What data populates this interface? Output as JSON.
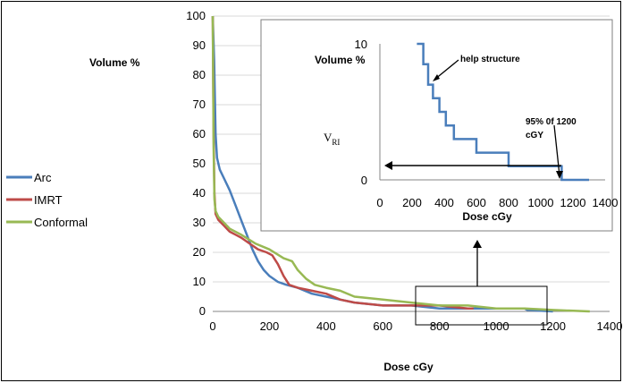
{
  "chart_data": [
    {
      "type": "line",
      "name": "main",
      "xlabel": "Dose cGy",
      "ylabel": "Volume %",
      "xlim": [
        0,
        1400
      ],
      "ylim": [
        0,
        100
      ],
      "xticks": [
        "0",
        "200",
        "400",
        "600",
        "800",
        "1000",
        "1200",
        "1400"
      ],
      "yticks": [
        "0",
        "10",
        "20",
        "30",
        "40",
        "50",
        "60",
        "70",
        "80",
        "90",
        "100"
      ],
      "legend_position": "left",
      "series": [
        {
          "name": "Arc",
          "color": "#4a7ebb",
          "points": [
            [
              0,
              100
            ],
            [
              5,
              85
            ],
            [
              10,
              60
            ],
            [
              15,
              52
            ],
            [
              25,
              48
            ],
            [
              40,
              45
            ],
            [
              60,
              41
            ],
            [
              80,
              36
            ],
            [
              100,
              31
            ],
            [
              120,
              26
            ],
            [
              140,
              21
            ],
            [
              160,
              17
            ],
            [
              180,
              14
            ],
            [
              200,
              12
            ],
            [
              230,
              10
            ],
            [
              260,
              9
            ],
            [
              300,
              8
            ],
            [
              350,
              6
            ],
            [
              400,
              5
            ],
            [
              450,
              4
            ],
            [
              500,
              3
            ],
            [
              600,
              2
            ],
            [
              700,
              2
            ],
            [
              800,
              1
            ],
            [
              1100,
              1
            ],
            [
              1110,
              0.5
            ],
            [
              1200,
              0
            ]
          ]
        },
        {
          "name": "IMRT",
          "color": "#be4b48",
          "points": [
            [
              0,
              100
            ],
            [
              3,
              60
            ],
            [
              6,
              40
            ],
            [
              10,
              33
            ],
            [
              20,
              31
            ],
            [
              40,
              29
            ],
            [
              60,
              27
            ],
            [
              80,
              26
            ],
            [
              100,
              25
            ],
            [
              130,
              23
            ],
            [
              160,
              21
            ],
            [
              190,
              20
            ],
            [
              210,
              19
            ],
            [
              230,
              16
            ],
            [
              250,
              12
            ],
            [
              270,
              9
            ],
            [
              300,
              8
            ],
            [
              350,
              7
            ],
            [
              400,
              6
            ],
            [
              450,
              4
            ],
            [
              500,
              3
            ],
            [
              600,
              2
            ],
            [
              700,
              2
            ],
            [
              800,
              2
            ],
            [
              900,
              1
            ],
            [
              920,
              1
            ]
          ]
        },
        {
          "name": "Conformal",
          "color": "#98b954",
          "points": [
            [
              0,
              100
            ],
            [
              3,
              55
            ],
            [
              6,
              38
            ],
            [
              10,
              34
            ],
            [
              20,
              32
            ],
            [
              40,
              30
            ],
            [
              60,
              28
            ],
            [
              100,
              26
            ],
            [
              150,
              23
            ],
            [
              200,
              21
            ],
            [
              250,
              18
            ],
            [
              280,
              17
            ],
            [
              300,
              14
            ],
            [
              330,
              11
            ],
            [
              360,
              9
            ],
            [
              400,
              8
            ],
            [
              450,
              7
            ],
            [
              500,
              5
            ],
            [
              600,
              4
            ],
            [
              700,
              3
            ],
            [
              800,
              2
            ],
            [
              900,
              2
            ],
            [
              1000,
              1
            ],
            [
              1100,
              1
            ],
            [
              1200,
              0.5
            ],
            [
              1330,
              0
            ]
          ]
        }
      ]
    },
    {
      "type": "line",
      "name": "inset",
      "xlabel": "Dose cGy",
      "ylabel": "Volume %",
      "xlim": [
        0,
        1400
      ],
      "ylim": [
        0,
        10
      ],
      "xticks": [
        "0",
        "200",
        "400",
        "600",
        "800",
        "1000",
        "1200",
        "1400"
      ],
      "yticks": [
        "0",
        "10"
      ],
      "series": [
        {
          "name": "Arc",
          "color": "#4a7ebb",
          "points": [
            [
              230,
              10
            ],
            [
              270,
              10
            ],
            [
              270,
              8.5
            ],
            [
              300,
              8.5
            ],
            [
              300,
              7
            ],
            [
              330,
              7
            ],
            [
              330,
              6
            ],
            [
              370,
              6
            ],
            [
              370,
              5
            ],
            [
              410,
              5
            ],
            [
              410,
              4
            ],
            [
              460,
              4
            ],
            [
              460,
              3
            ],
            [
              600,
              3
            ],
            [
              600,
              2
            ],
            [
              800,
              2
            ],
            [
              800,
              1
            ],
            [
              1130,
              1
            ],
            [
              1130,
              0
            ],
            [
              1300,
              0
            ]
          ]
        }
      ],
      "annotations": {
        "help_structure": "help structure",
        "percent_label_1": "95% 0f 1200",
        "percent_label_2": "cGY",
        "vri_main": "V",
        "vri_sub": "RI"
      }
    }
  ]
}
